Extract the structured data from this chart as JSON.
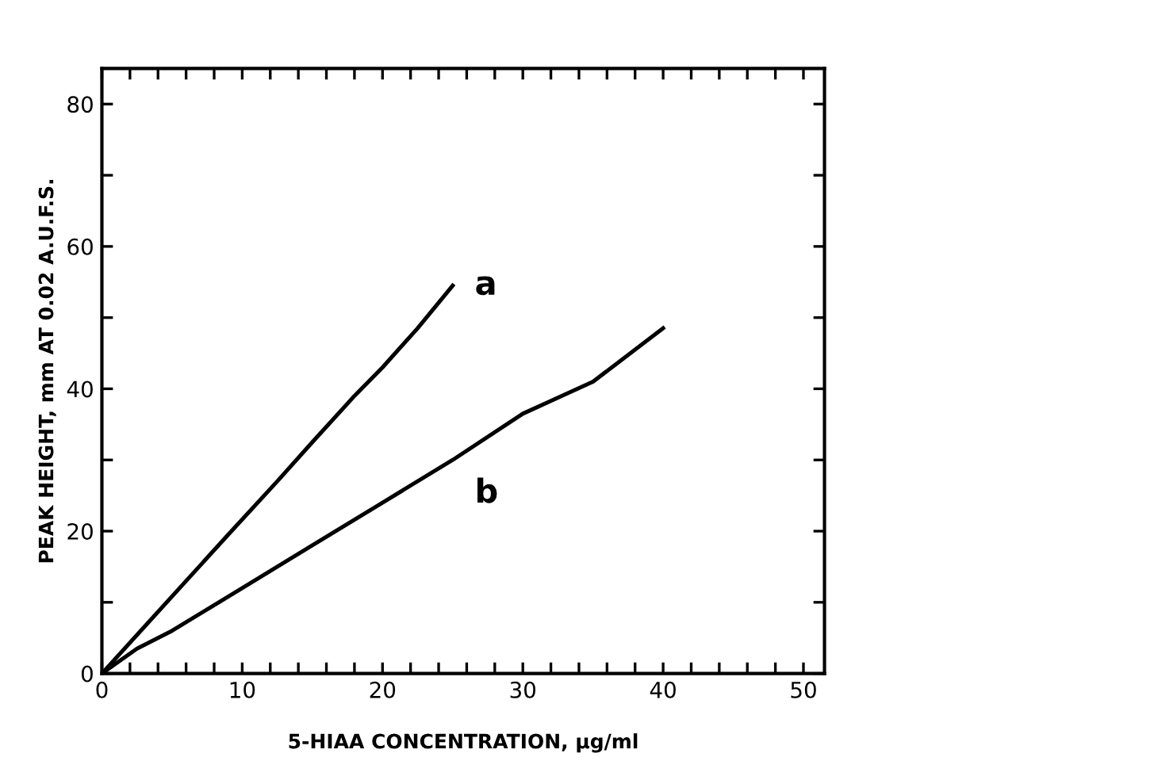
{
  "chart_data": {
    "type": "line",
    "xlabel": "5-HIAA CONCENTRATION, µg/ml",
    "ylabel": "PEAK HEIGHT, mm AT 0.02 A.U.F.S.",
    "series": [
      {
        "name": "a",
        "color": "#000000",
        "x": [
          0,
          3,
          6,
          9,
          12.5,
          15,
          18,
          20,
          22.5,
          25
        ],
        "values": [
          0,
          6.5,
          13,
          19.5,
          27,
          32.5,
          39,
          43,
          48.5,
          54.5
        ]
      },
      {
        "name": "b",
        "color": "#000000",
        "x": [
          0,
          2.5,
          5,
          10,
          15,
          20,
          25,
          30,
          35,
          40
        ],
        "values": [
          0,
          3.5,
          6,
          12,
          18,
          24,
          30,
          36.5,
          41,
          48.5
        ]
      }
    ],
    "xlim": [
      0,
      51.5
    ],
    "ylim": [
      0,
      85
    ],
    "xticks": [
      0,
      {
        "value": 2,
        "label": null
      },
      {
        "value": 4,
        "label": null
      },
      {
        "value": 6,
        "label": null
      },
      {
        "value": 8,
        "label": null
      },
      10,
      {
        "value": 12,
        "label": null
      },
      {
        "value": 14,
        "label": null
      },
      {
        "value": 16,
        "label": null
      },
      {
        "value": 18,
        "label": null
      },
      20,
      {
        "value": 22,
        "label": null
      },
      {
        "value": 24,
        "label": null
      },
      {
        "value": 26,
        "label": null
      },
      {
        "value": 28,
        "label": null
      },
      30,
      {
        "value": 32,
        "label": null
      },
      {
        "value": 34,
        "label": null
      },
      {
        "value": 36,
        "label": null
      },
      {
        "value": 38,
        "label": null
      },
      40,
      {
        "value": 42,
        "label": null
      },
      {
        "value": 44,
        "label": null
      },
      {
        "value": 46,
        "label": null
      },
      {
        "value": 48,
        "label": null
      },
      50
    ],
    "yticks": [
      0,
      {
        "value": 10,
        "label": null
      },
      20,
      {
        "value": 30,
        "label": null
      },
      40,
      {
        "value": 50,
        "label": null
      },
      60,
      {
        "value": 70,
        "label": null
      },
      80
    ],
    "grid": false,
    "legend": false,
    "marker": "none",
    "line_style": "solid"
  }
}
